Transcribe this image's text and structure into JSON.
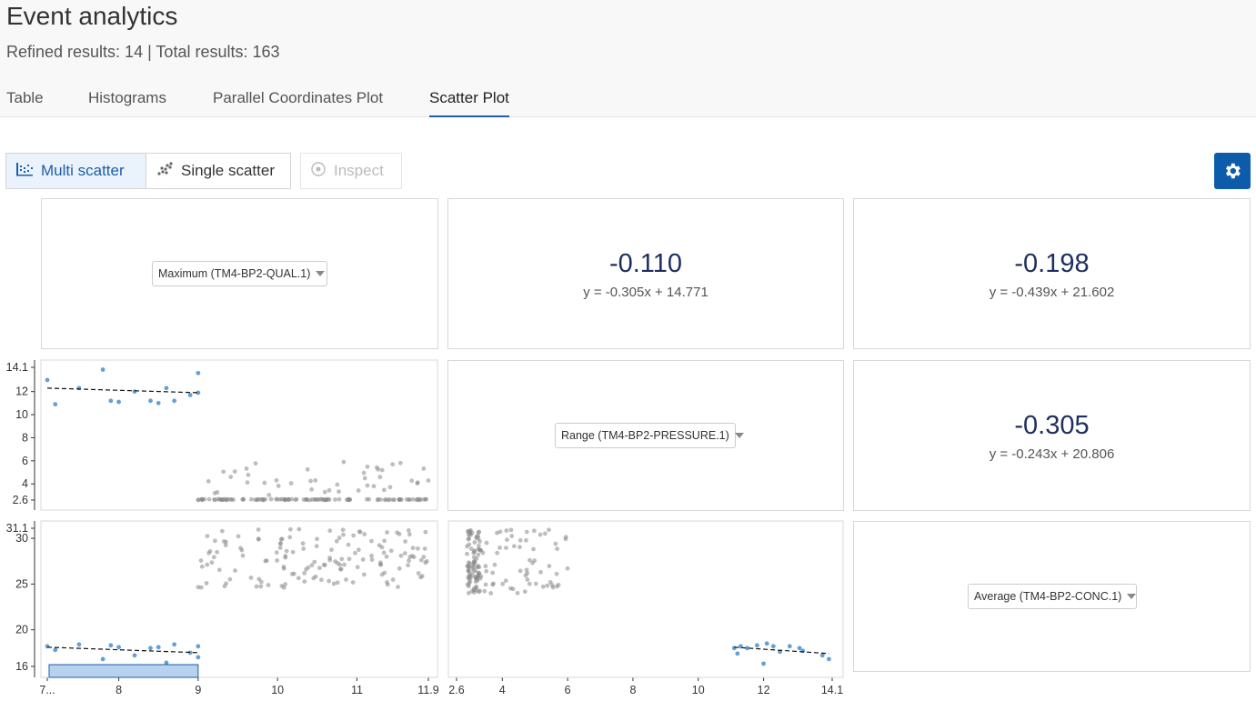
{
  "page": {
    "title": "Event analytics",
    "subtitle": "Refined results: 14 | Total results: 163"
  },
  "tabs": [
    {
      "label": "Table",
      "active": false
    },
    {
      "label": "Histograms",
      "active": false
    },
    {
      "label": "Parallel Coordinates Plot",
      "active": false
    },
    {
      "label": "Scatter Plot",
      "active": true
    }
  ],
  "toolbar": {
    "multi_scatter": {
      "label": "Multi scatter",
      "icon": "multi-scatter-icon",
      "active": true
    },
    "single_scatter": {
      "label": "Single scatter",
      "icon": "single-scatter-icon",
      "active": false
    },
    "inspect": {
      "label": "Inspect",
      "icon": "target-icon",
      "disabled": true
    },
    "settings_icon": "gear-icon"
  },
  "colors": {
    "accent": "#1f5da8",
    "selected_point": "#5b9bd5",
    "unselected_point": "#888888",
    "correlation_text": "#1e2f5f",
    "brush_fill": "#9fc3e8"
  },
  "matrix": {
    "variables": [
      {
        "label": "Maximum (TM4-BP2-QUAL.1)"
      },
      {
        "label": "Range (TM4-BP2-PRESSURE.1)"
      },
      {
        "label": "Average (TM4-BP2-CONC.1)"
      }
    ],
    "correlations": {
      "r01": {
        "value": "-0.110",
        "equation": "y = -0.305x + 14.771"
      },
      "r02": {
        "value": "-0.198",
        "equation": "y = -0.439x + 21.602"
      },
      "r12": {
        "value": "-0.305",
        "equation": "y = -0.243x + 20.806"
      }
    }
  },
  "chart_data": [
    {
      "type": "scatter",
      "name": "Range vs Maximum",
      "ylim": [
        2.6,
        14.1
      ],
      "yticks": [
        "2.6",
        "4",
        "6",
        "8",
        "10",
        "12",
        "14.1"
      ],
      "selected": {
        "x": [
          7.1,
          7.2,
          7.5,
          7.8,
          7.9,
          8.0,
          8.2,
          8.4,
          8.5,
          8.6,
          8.7,
          8.9,
          9.0,
          9.0
        ],
        "y": [
          13.0,
          10.9,
          12.3,
          13.9,
          11.2,
          11.1,
          12.0,
          11.2,
          11.0,
          12.3,
          11.2,
          11.7,
          11.9,
          13.6
        ]
      },
      "unselected_summary": {
        "x_range": [
          9.0,
          11.9
        ],
        "y_cluster": 2.6,
        "y_max": 6.0
      },
      "trendline": {
        "x": [
          7.1,
          9.0
        ],
        "y": [
          12.3,
          11.9
        ]
      }
    },
    {
      "type": "scatter",
      "name": "Average vs Maximum",
      "xlim": [
        7.1,
        11.9
      ],
      "xticks": [
        "7...",
        "8",
        "9",
        "10",
        "11",
        "11.9"
      ],
      "ylim": [
        15.0,
        31.1
      ],
      "yticks": [
        "16",
        "20",
        "25",
        "30",
        "31.1"
      ],
      "selected": {
        "x": [
          7.1,
          7.2,
          7.5,
          7.8,
          7.9,
          8.0,
          8.2,
          8.4,
          8.5,
          8.6,
          8.7,
          8.9,
          9.0,
          9.0
        ],
        "y": [
          18.2,
          17.8,
          18.4,
          16.8,
          18.3,
          18.1,
          17.2,
          18.0,
          18.1,
          16.4,
          18.4,
          17.5,
          18.2,
          17.0
        ]
      },
      "unselected_summary": {
        "x_range": [
          9.0,
          11.9
        ],
        "y_range": [
          24.5,
          31.0
        ]
      },
      "trendline": {
        "x": [
          7.1,
          9.0
        ],
        "y": [
          18.1,
          17.5
        ]
      },
      "brush": {
        "x": [
          7.1,
          9.0
        ],
        "y": [
          15.0,
          16.0
        ]
      }
    },
    {
      "type": "scatter",
      "name": "Average vs Range",
      "xlim": [
        2.6,
        14.1
      ],
      "xticks": [
        "2.6",
        "4",
        "6",
        "8",
        "10",
        "12",
        "14.1"
      ],
      "ylim": [
        15.0,
        31.1
      ],
      "selected": {
        "x": [
          11.1,
          11.2,
          11.3,
          11.5,
          11.8,
          12.0,
          12.1,
          12.3,
          12.5,
          12.8,
          13.1,
          13.2,
          13.8,
          14.0
        ],
        "y": [
          18.0,
          17.4,
          18.2,
          18.0,
          18.3,
          16.3,
          18.5,
          18.2,
          17.6,
          18.2,
          18.0,
          17.7,
          17.2,
          16.8
        ]
      },
      "unselected_summary": {
        "x_range": [
          2.6,
          6.0
        ],
        "y_range": [
          24.0,
          31.0
        ]
      },
      "trendline": {
        "x": [
          11.1,
          14.0
        ],
        "y": [
          18.1,
          17.4
        ]
      }
    }
  ]
}
